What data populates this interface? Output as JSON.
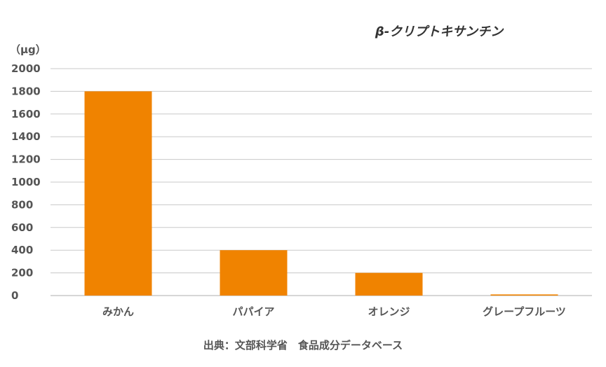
{
  "chart_data": {
    "type": "bar",
    "title": "β-クリプトキサンチン",
    "ylabel": "（μg）",
    "xlabel": "",
    "categories": [
      "みかん",
      "パパイア",
      "オレンジ",
      "グレープフルーツ"
    ],
    "values": [
      1800,
      400,
      200,
      10
    ],
    "ylim": [
      0,
      2000
    ],
    "yticks": [
      0,
      200,
      400,
      600,
      800,
      1000,
      1200,
      1400,
      1600,
      1800,
      2000
    ],
    "grid": true,
    "bar_color": "#F08300",
    "grid_color": "#C8C8C8",
    "source": "出典：文部科学省　食品成分データベース"
  }
}
